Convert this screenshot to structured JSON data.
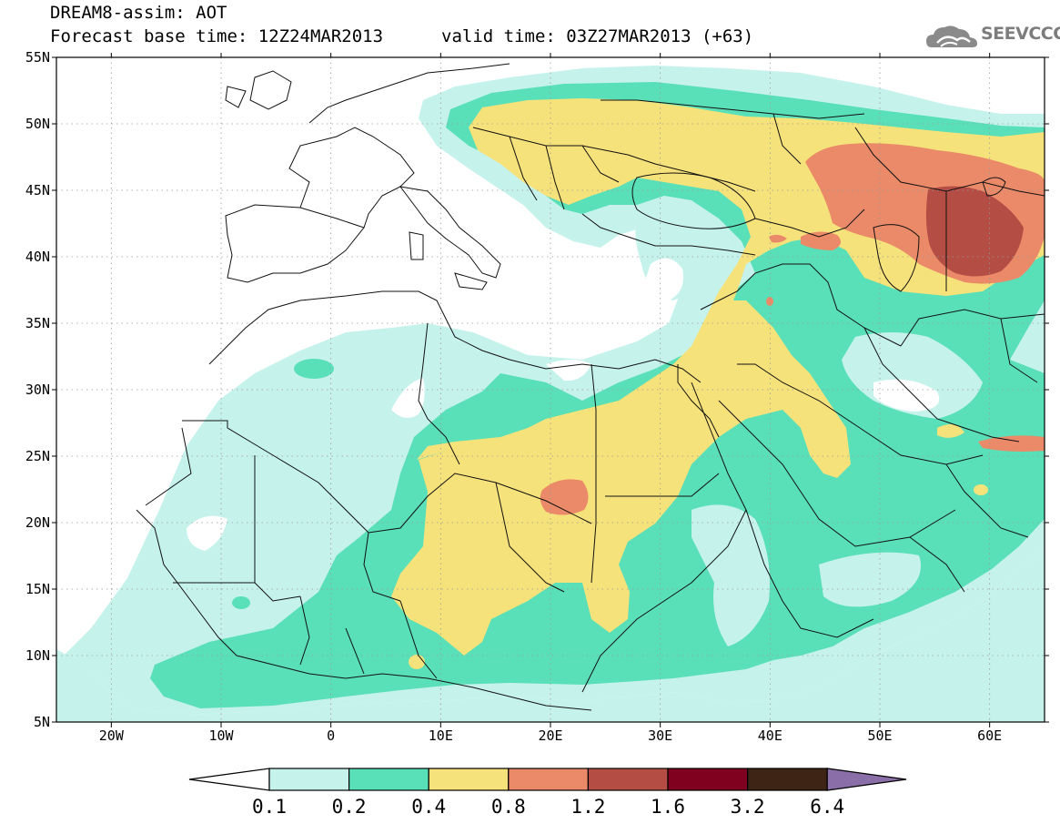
{
  "header": {
    "title_line1": "DREAM8-assim: AOT",
    "base_time": "Forecast base time: 12Z24MAR2013",
    "valid_time": "valid time: 03Z27MAR2013 (+63)",
    "logo_text": "SEEVCCC"
  },
  "map": {
    "lon_range": [
      -25,
      65
    ],
    "lat_range": [
      5,
      55
    ],
    "lat_ticks": [
      {
        "value": 55,
        "label": "55N"
      },
      {
        "value": 50,
        "label": "50N"
      },
      {
        "value": 45,
        "label": "45N"
      },
      {
        "value": 40,
        "label": "40N"
      },
      {
        "value": 35,
        "label": "35N"
      },
      {
        "value": 30,
        "label": "30N"
      },
      {
        "value": 25,
        "label": "25N"
      },
      {
        "value": 20,
        "label": "20N"
      },
      {
        "value": 15,
        "label": "15N"
      },
      {
        "value": 10,
        "label": "10N"
      },
      {
        "value": 5,
        "label": "5N"
      }
    ],
    "lon_ticks": [
      {
        "value": -20,
        "label": "20W"
      },
      {
        "value": -10,
        "label": "10W"
      },
      {
        "value": 0,
        "label": "0"
      },
      {
        "value": 10,
        "label": "10E"
      },
      {
        "value": 20,
        "label": "20E"
      },
      {
        "value": 30,
        "label": "30E"
      },
      {
        "value": 40,
        "label": "40E"
      },
      {
        "value": 50,
        "label": "50E"
      },
      {
        "value": 60,
        "label": "60E"
      }
    ],
    "grid": true
  },
  "colorbar": {
    "levels": [
      "0.1",
      "0.2",
      "0.4",
      "0.8",
      "1.2",
      "1.6",
      "3.2",
      "6.4"
    ],
    "colors": [
      "#ffffff",
      "#c6f2ec",
      "#5ae0b8",
      "#f6e27a",
      "#ea8a68",
      "#b44e45",
      "#800020",
      "#3d2415",
      "#8a6ea8"
    ]
  }
}
